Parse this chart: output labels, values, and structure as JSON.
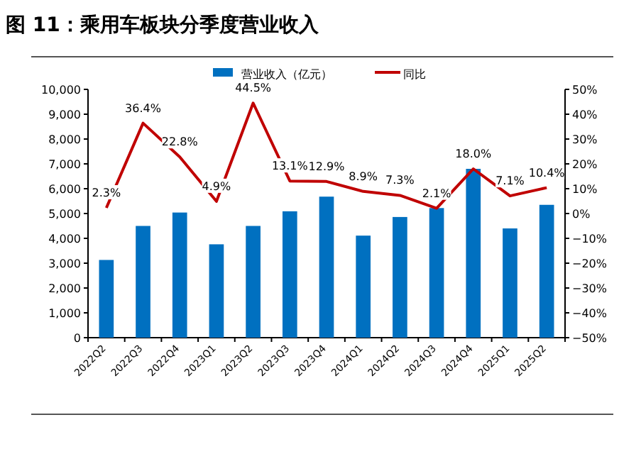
{
  "chart_data": {
    "type": "bar",
    "title": "图 11：乘用车板块分季度营业收入",
    "categories": [
      "2022Q2",
      "2022Q3",
      "2022Q4",
      "2023Q1",
      "2023Q2",
      "2023Q3",
      "2023Q4",
      "2024Q1",
      "2024Q2",
      "2024Q3",
      "2024Q4",
      "2025Q1",
      "2025Q2"
    ],
    "series": [
      {
        "name": "营业收入（亿元）",
        "color": "#0070c0",
        "values": [
          3130,
          4500,
          5040,
          3760,
          4500,
          5090,
          5680,
          4110,
          4860,
          5220,
          6800,
          4400,
          5350
        ]
      },
      {
        "name": "同比",
        "type": "line",
        "axis": "y2",
        "color": "#c00000",
        "values": [
          2.3,
          36.4,
          22.8,
          4.9,
          44.5,
          13.1,
          12.9,
          8.9,
          7.3,
          2.1,
          18.0,
          7.1,
          10.4
        ],
        "value_labels": [
          "2.3%",
          "36.4%",
          "22.8%",
          "4.9%",
          "44.5%",
          "13.1%",
          "12.9%",
          "8.9%",
          "7.3%",
          "2.1%",
          "18.0%",
          "7.1%",
          "10.4%"
        ]
      }
    ],
    "ylim": [
      0,
      10000
    ],
    "yticks": [
      0,
      {
        "value": 1000,
        "label": "1,000"
      },
      {
        "value": 2000,
        "label": "2,000"
      },
      {
        "value": 3000,
        "label": "3,000"
      },
      {
        "value": 4000,
        "label": "4,000"
      },
      {
        "value": 5000,
        "label": "5,000"
      },
      {
        "value": 6000,
        "label": "6,000"
      },
      {
        "value": 7000,
        "label": "7,000"
      },
      {
        "value": 8000,
        "label": "8,000"
      },
      {
        "value": 9000,
        "label": "9,000"
      },
      {
        "value": 10000,
        "label": "10,000"
      }
    ],
    "y2lim": [
      -50,
      50
    ],
    "y2ticks": [
      {
        "value": -50,
        "label": "−50%"
      },
      {
        "value": -40,
        "label": "−40%"
      },
      {
        "value": -30,
        "label": "−30%"
      },
      {
        "value": -20,
        "label": "−20%"
      },
      {
        "value": -10,
        "label": "−10%"
      },
      {
        "value": 0,
        "label": "0%"
      },
      {
        "value": 10,
        "label": "10%"
      },
      {
        "value": 20,
        "label": "20%"
      },
      {
        "value": 30,
        "label": "30%"
      },
      {
        "value": 40,
        "label": "40%"
      },
      {
        "value": 50,
        "label": "50%"
      }
    ],
    "legend": "top",
    "grid": false
  }
}
